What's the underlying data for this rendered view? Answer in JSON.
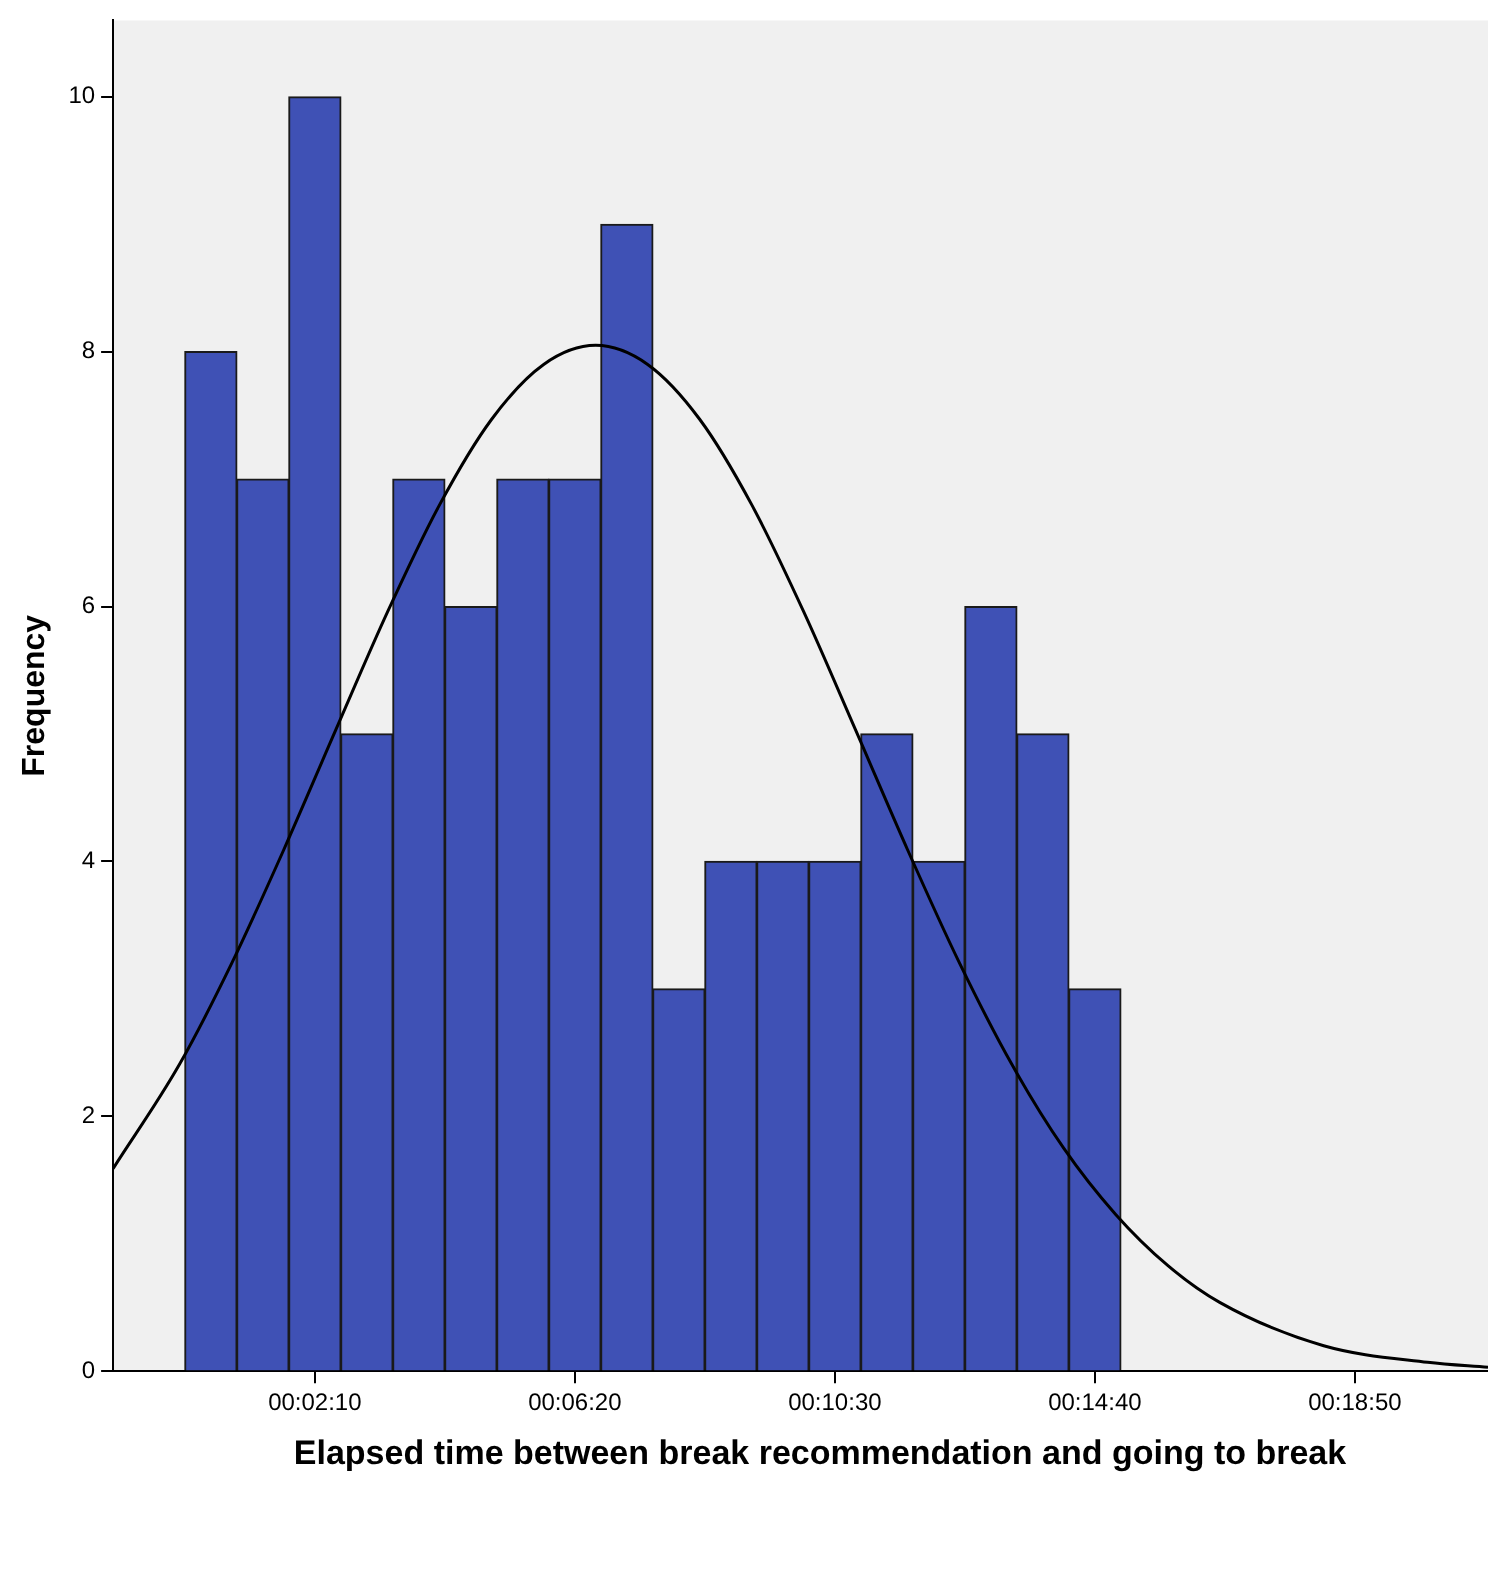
{
  "chart_data": {
    "type": "histogram",
    "xlabel": "Elapsed time between break recommendation and going to break",
    "ylabel": "Frequency",
    "bins": [
      5,
      55,
      105,
      155,
      205,
      255,
      305,
      355,
      405,
      455,
      505,
      555,
      605,
      655,
      705,
      755,
      805,
      855,
      905
    ],
    "values": [
      8,
      7,
      10,
      5,
      7,
      6,
      7,
      7,
      9,
      3,
      4,
      4,
      4,
      5,
      4,
      6,
      5,
      3
    ],
    "color": "#3f51b5",
    "series": [
      {
        "type": "line",
        "color": "#000000",
        "x": [
          -64,
          0,
          50,
          100,
          150,
          200,
          250,
          300,
          350,
          400,
          450,
          500,
          550,
          600,
          650,
          700,
          750,
          800,
          850,
          900,
          950,
          1000,
          1100,
          1200,
          1258
        ],
        "values": [
          1.59,
          2.41,
          3.2,
          4.09,
          5.03,
          5.96,
          6.8,
          7.47,
          7.9,
          8.05,
          7.9,
          7.47,
          6.8,
          5.96,
          5.03,
          4.09,
          3.2,
          2.41,
          1.75,
          1.23,
          0.83,
          0.54,
          0.2,
          0.07,
          0.03
        ]
      }
    ],
    "xlim": [
      -64,
      1258
    ],
    "xticks": [
      {
        "value": 130,
        "label": "00:02:10"
      },
      {
        "value": 380,
        "label": "00:06:20"
      },
      {
        "value": 630,
        "label": "00:10:30"
      },
      {
        "value": 880,
        "label": "00:14:40"
      },
      {
        "value": 1130,
        "label": "00:18:50"
      }
    ],
    "ylim": [
      0,
      10.6
    ],
    "yticks": [
      0,
      2,
      4,
      6,
      8,
      10
    ],
    "grid": false,
    "legend": false,
    "marker": "none"
  }
}
